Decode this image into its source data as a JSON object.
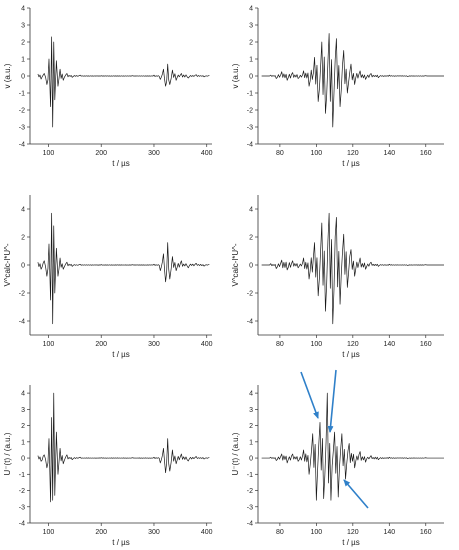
{
  "chart_data": [
    {
      "type": "line",
      "xlabel": "t / µs",
      "ylabel": "v (a.u.)",
      "xlim": [
        65,
        410
      ],
      "ylim": [
        -4,
        4
      ],
      "xticks": [
        100,
        200,
        300,
        400
      ],
      "yticks": [
        -4,
        -3,
        -2,
        -1,
        0,
        1,
        2,
        3,
        4
      ],
      "series": [
        {
          "x": [
            80,
            86,
            92,
            97,
            101,
            104,
            106,
            108,
            110,
            112,
            115,
            118,
            122,
            128,
            135,
            145,
            160,
            200,
            260,
            300,
            312,
            318,
            322,
            326,
            330,
            335,
            342,
            352,
            365,
            380,
            395,
            405
          ],
          "y": [
            0.12,
            -0.18,
            0.15,
            -0.5,
            1.0,
            -1.8,
            2.3,
            -3.0,
            2.0,
            -1.4,
            0.9,
            -0.6,
            0.4,
            -0.25,
            0.15,
            -0.08,
            0.05,
            0.02,
            0.02,
            0.05,
            -0.2,
            0.4,
            -0.6,
            0.7,
            -0.5,
            0.35,
            -0.25,
            0.15,
            -0.12,
            0.08,
            -0.05,
            0.03
          ]
        }
      ]
    },
    {
      "type": "line",
      "xlabel": "t / µs",
      "ylabel": "v (a.u.)",
      "xlim": [
        68,
        170
      ],
      "ylim": [
        -4,
        4
      ],
      "xticks": [
        80,
        100,
        120,
        140,
        160
      ],
      "yticks": [
        -4,
        -3,
        -2,
        -1,
        0,
        1,
        2,
        3,
        4
      ],
      "series": [
        {
          "x": [
            70,
            75,
            78,
            81,
            84,
            87,
            90,
            93,
            96,
            99,
            101,
            103,
            105,
            107,
            109,
            111,
            113,
            115,
            117,
            119,
            121,
            124,
            127,
            130,
            134,
            140,
            150,
            160,
            170
          ],
          "y": [
            0.0,
            0.05,
            -0.15,
            0.25,
            -0.25,
            0.2,
            -0.15,
            0.3,
            -0.6,
            1.1,
            -1.5,
            2.0,
            -2.2,
            2.5,
            -3.0,
            2.2,
            -1.8,
            1.5,
            -1.0,
            0.7,
            -0.5,
            0.3,
            -0.2,
            0.15,
            -0.1,
            0.05,
            -0.03,
            0.02,
            0.0
          ]
        }
      ]
    },
    {
      "type": "line",
      "xlabel": "t / µs",
      "ylabel": "V^calc-l*U^-",
      "xlim": [
        65,
        410
      ],
      "ylim": [
        -5,
        5
      ],
      "xticks": [
        100,
        200,
        300,
        400
      ],
      "yticks": [
        -4,
        -2,
        0,
        2,
        4
      ],
      "series": [
        {
          "x": [
            80,
            86,
            92,
            97,
            101,
            104,
            106,
            108,
            110,
            112,
            115,
            118,
            122,
            128,
            135,
            145,
            160,
            200,
            260,
            300,
            312,
            318,
            322,
            326,
            330,
            335,
            342,
            352,
            365,
            380,
            395,
            405
          ],
          "y": [
            0.2,
            -0.3,
            0.3,
            -0.8,
            1.5,
            -2.5,
            3.7,
            -4.2,
            2.8,
            -2.0,
            1.2,
            -0.8,
            0.5,
            -0.3,
            0.2,
            -0.1,
            0.05,
            0.03,
            0.02,
            0.05,
            -0.4,
            0.8,
            -1.2,
            1.6,
            -1.0,
            0.6,
            -0.4,
            0.3,
            -0.2,
            0.12,
            -0.08,
            0.04
          ]
        }
      ]
    },
    {
      "type": "line",
      "xlabel": "t / µs",
      "ylabel": "V^calc-l*U^-",
      "xlim": [
        68,
        170
      ],
      "ylim": [
        -5,
        5
      ],
      "xticks": [
        80,
        100,
        120,
        140,
        160
      ],
      "yticks": [
        -4,
        -2,
        0,
        2,
        4
      ],
      "series": [
        {
          "x": [
            70,
            75,
            78,
            81,
            84,
            87,
            90,
            93,
            96,
            99,
            101,
            103,
            105,
            107,
            109,
            111,
            113,
            115,
            117,
            119,
            121,
            124,
            127,
            130,
            134,
            140,
            150,
            160,
            170
          ],
          "y": [
            0.0,
            0.1,
            -0.25,
            0.35,
            -0.35,
            0.3,
            -0.2,
            0.5,
            -1.0,
            1.6,
            -2.2,
            3.0,
            -3.3,
            3.7,
            -4.2,
            3.4,
            -2.8,
            2.2,
            -1.6,
            1.1,
            -0.8,
            0.5,
            -0.3,
            0.2,
            -0.1,
            0.05,
            -0.03,
            0.02,
            0.0
          ]
        }
      ]
    },
    {
      "type": "line",
      "xlabel": "t / µs",
      "ylabel": "U⁻(t) / (a.u.)",
      "xlim": [
        65,
        410
      ],
      "ylim": [
        -4,
        4.5
      ],
      "xticks": [
        100,
        200,
        300,
        400
      ],
      "yticks": [
        -4,
        -3,
        -2,
        -1,
        0,
        1,
        2,
        3,
        4
      ],
      "series": [
        {
          "x": [
            80,
            86,
            92,
            97,
            101,
            104,
            106,
            108,
            110,
            112,
            115,
            118,
            122,
            128,
            135,
            145,
            160,
            200,
            260,
            300,
            312,
            318,
            322,
            326,
            330,
            335,
            342,
            352,
            365,
            380,
            395,
            405
          ],
          "y": [
            0.15,
            -0.2,
            0.2,
            -0.6,
            1.2,
            -2.7,
            2.5,
            -2.6,
            4.0,
            -2.3,
            1.6,
            -1.0,
            0.6,
            -0.35,
            0.2,
            -0.1,
            0.05,
            0.02,
            0.02,
            0.05,
            -0.3,
            0.6,
            -0.9,
            1.2,
            -0.8,
            0.5,
            -0.35,
            0.25,
            -0.18,
            0.1,
            -0.06,
            0.03
          ]
        }
      ]
    },
    {
      "type": "line",
      "xlabel": "t / µs",
      "ylabel": "U⁻(t) / (a.u.)",
      "xlim": [
        68,
        170
      ],
      "ylim": [
        -4,
        4.5
      ],
      "xticks": [
        80,
        100,
        120,
        140,
        160
      ],
      "yticks": [
        -4,
        -3,
        -2,
        -1,
        0,
        1,
        2,
        3,
        4
      ],
      "series": [
        {
          "x": [
            70,
            75,
            78,
            81,
            84,
            87,
            90,
            93,
            96,
            98,
            100,
            102,
            104,
            106,
            108,
            110,
            112,
            114,
            116,
            118,
            121,
            124,
            127,
            130,
            134,
            140,
            150,
            160,
            170
          ],
          "y": [
            0.0,
            0.05,
            -0.15,
            0.25,
            -0.3,
            0.25,
            -0.2,
            0.5,
            -1.0,
            1.5,
            -2.6,
            2.2,
            -2.5,
            4.0,
            -2.6,
            1.6,
            -2.4,
            1.5,
            -1.3,
            0.9,
            -0.6,
            0.4,
            -0.25,
            0.15,
            -0.1,
            0.05,
            -0.03,
            0.02,
            0.0
          ]
        }
      ]
    }
  ],
  "colors": {
    "trace": "#1a1a1a",
    "axes": "#333333",
    "arrow": "#2f80c9"
  }
}
